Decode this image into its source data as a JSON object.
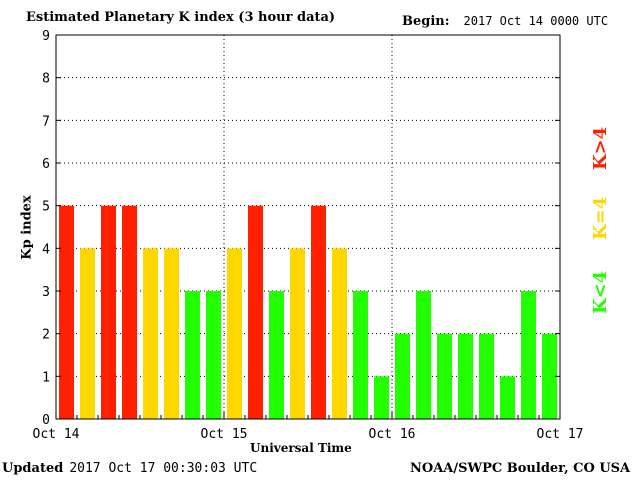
{
  "chart_data": {
    "type": "bar",
    "title": "Estimated Planetary K index (3 hour data)",
    "begin_label": "Begin:",
    "begin_value": "2017 Oct 14 0000 UTC",
    "ylabel": "Kp index",
    "xlabel": "Universal Time",
    "ylim": [
      0,
      9
    ],
    "yticks": [
      "0",
      "1",
      "2",
      "3",
      "4",
      "5",
      "6",
      "7",
      "8",
      "9"
    ],
    "xtick_labels": [
      "Oct 14",
      "Oct 15",
      "Oct 16",
      "Oct 17"
    ],
    "grid": true,
    "values": [
      5,
      4,
      5,
      5,
      4,
      4,
      3,
      3,
      4,
      5,
      3,
      4,
      5,
      4,
      3,
      1,
      2,
      3,
      2,
      2,
      2,
      1,
      3,
      2
    ],
    "legend": [
      {
        "label": "K<4",
        "color": "#22ff00"
      },
      {
        "label": "K=4",
        "color": "#ffd700"
      },
      {
        "label": "K>4",
        "color": "#ff2000"
      }
    ],
    "colors": {
      "below": "#22ff00",
      "equal": "#ffd700",
      "above": "#ff2000"
    }
  },
  "footer": {
    "updated_label": "Updated",
    "updated_value": "2017 Oct 17 00:30:03 UTC",
    "credit": "NOAA/SWPC Boulder, CO USA"
  }
}
